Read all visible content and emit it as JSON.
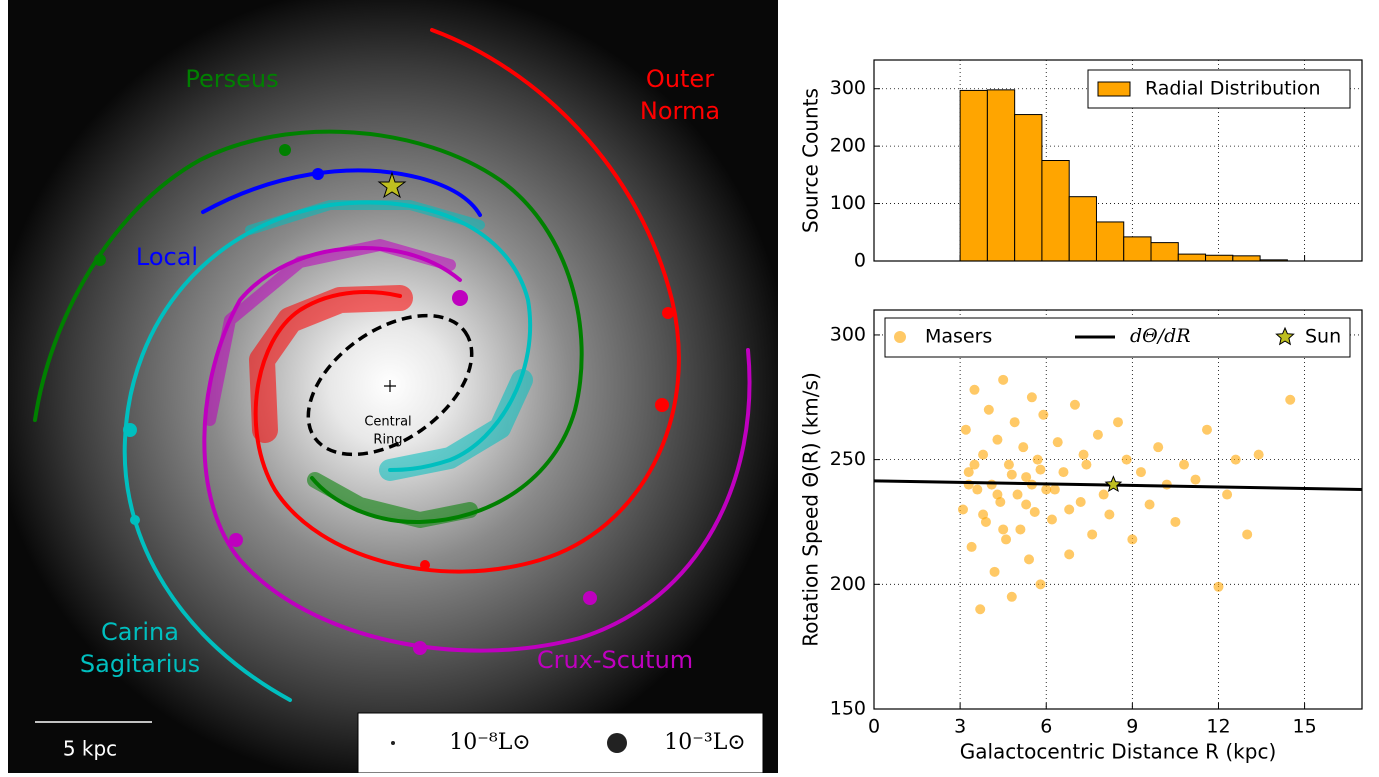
{
  "galaxy_map": {
    "arm_labels": [
      {
        "lines": [
          "Perseus"
        ],
        "color": "#008000"
      },
      {
        "lines": [
          "Outer",
          "Norma"
        ],
        "color": "#ff0000"
      },
      {
        "lines": [
          "Local"
        ],
        "color": "#0000ff"
      },
      {
        "lines": [
          "Carina",
          "Sagitarius"
        ],
        "color": "#00bfbf"
      },
      {
        "lines": [
          "Crux-Scutum"
        ],
        "color": "#bf00bf"
      }
    ],
    "central_ring": [
      "Central",
      "Ring"
    ],
    "scale_bar": "5 kpc",
    "legend": [
      "10⁻⁸L⊙",
      "10⁻³L⊙"
    ]
  },
  "chart_data": [
    {
      "type": "histogram",
      "ylabel": "Source Counts",
      "bins": [
        3,
        3.95,
        4.9,
        5.85,
        6.8,
        7.75,
        8.7,
        9.65,
        10.6,
        11.55,
        12.5,
        13.45,
        14.4
      ],
      "values": [
        297,
        298,
        255,
        175,
        112,
        68,
        42,
        32,
        12,
        10,
        9,
        2
      ],
      "color": "#ffa500",
      "legend_label": "Radial Distribution",
      "legend_position": "upper right",
      "xlim": [
        0,
        17
      ],
      "xticks": [
        0,
        3,
        6,
        9,
        12,
        15
      ],
      "ylim": [
        0,
        350
      ],
      "yticks": [
        0,
        100,
        200,
        300
      ],
      "grid": true
    },
    {
      "type": "scatter",
      "xlabel": "Galactocentric Distance R (kpc)",
      "ylabel": "Rotation Speed Θ(R) (km/s)",
      "xlim": [
        0,
        17
      ],
      "xticks": [
        0,
        3,
        6,
        9,
        12,
        15
      ],
      "ylim": [
        150,
        310
      ],
      "yticks": [
        150,
        200,
        250,
        300
      ],
      "grid": true,
      "legend_position": "upper center",
      "series": [
        {
          "name": "Masers",
          "kind": "points",
          "color": "#ffa500",
          "x": [
            3.1,
            3.2,
            3.3,
            3.4,
            3.5,
            3.6,
            3.7,
            3.8,
            3.9,
            4.0,
            4.1,
            4.2,
            4.3,
            4.4,
            4.5,
            4.6,
            4.7,
            4.8,
            4.9,
            5.0,
            5.1,
            5.2,
            5.3,
            5.4,
            5.5,
            5.6,
            5.7,
            5.8,
            5.9,
            6.0,
            6.2,
            6.4,
            6.6,
            6.8,
            7.0,
            7.2,
            7.4,
            7.6,
            7.8,
            8.0,
            8.2,
            8.5,
            8.8,
            9.0,
            9.3,
            9.6,
            9.9,
            10.2,
            10.5,
            10.8,
            11.2,
            11.6,
            12.0,
            12.3,
            12.6,
            13.0,
            13.4,
            14.5,
            3.3,
            3.8,
            4.3,
            4.8,
            5.3,
            5.8,
            6.3,
            6.8,
            7.3,
            3.5,
            4.5,
            5.5
          ],
          "values": [
            230,
            262,
            245,
            215,
            278,
            238,
            190,
            252,
            225,
            270,
            240,
            205,
            258,
            233,
            282,
            218,
            248,
            195,
            265,
            236,
            222,
            255,
            243,
            210,
            275,
            229,
            250,
            200,
            268,
            238,
            226,
            257,
            245,
            212,
            272,
            233,
            248,
            220,
            260,
            236,
            228,
            265,
            250,
            218,
            245,
            232,
            255,
            240,
            225,
            248,
            242,
            262,
            199,
            236,
            250,
            220,
            252,
            274,
            240,
            228,
            236,
            244,
            232,
            246,
            238,
            230,
            252,
            248,
            222,
            240
          ]
        },
        {
          "name": "dΘ/dR",
          "kind": "line",
          "color": "#000000",
          "x": [
            0,
            17
          ],
          "values": [
            241.5,
            238
          ]
        },
        {
          "name": "Sun",
          "kind": "star",
          "color": "#bfbf20",
          "x": [
            8.34
          ],
          "values": [
            240
          ]
        }
      ]
    }
  ]
}
